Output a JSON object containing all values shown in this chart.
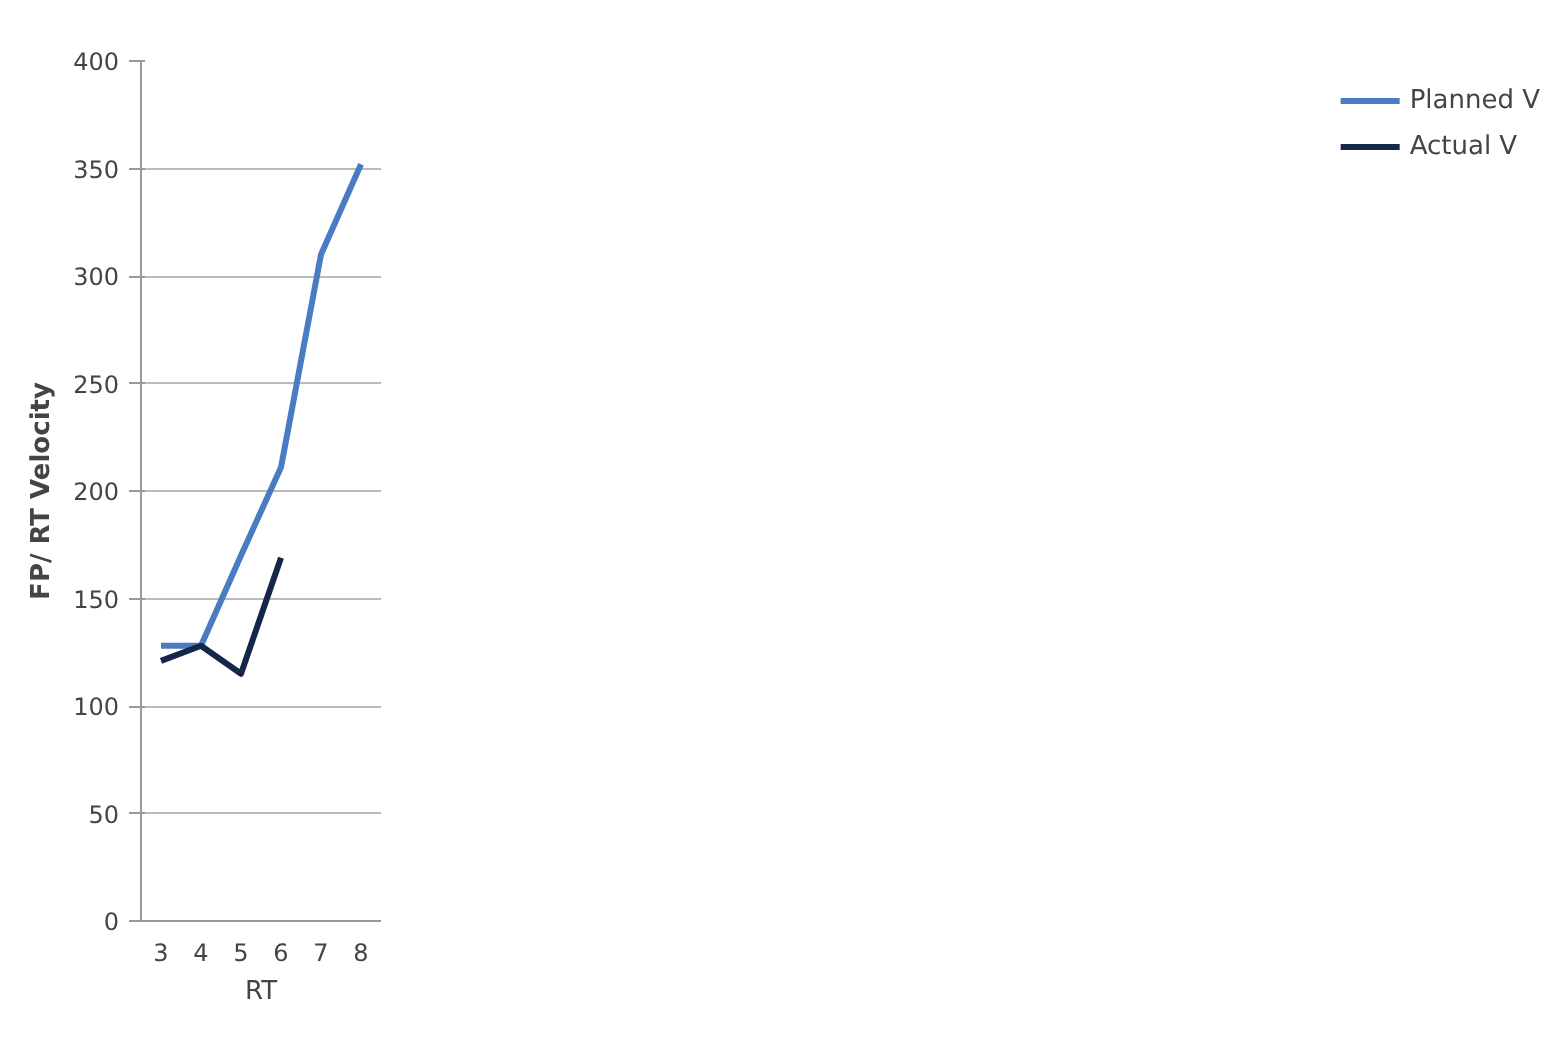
{
  "chart_data": {
    "type": "line",
    "xlabel": "RT",
    "ylabel": "FP/ RT Velocity",
    "categories": [
      "3",
      "4",
      "5",
      "6",
      "7",
      "8"
    ],
    "series": [
      {
        "name": "Planned V",
        "color": "#4a7cc4",
        "values": [
          128,
          128,
          170,
          211,
          310,
          352
        ]
      },
      {
        "name": "Actual V",
        "color": "#16264a",
        "values": [
          121,
          128,
          115,
          169,
          null,
          null
        ]
      }
    ],
    "ylim": [
      0,
      400
    ],
    "yticks": [
      0,
      50,
      100,
      150,
      200,
      250,
      300,
      350,
      400
    ],
    "grid": "y",
    "legend": "right",
    "marker": "none",
    "line_style": "solid"
  }
}
